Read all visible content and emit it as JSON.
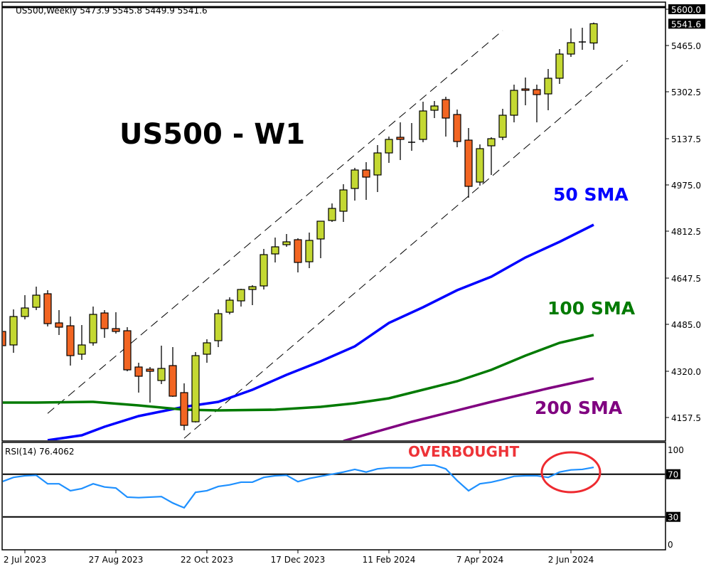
{
  "header": {
    "symbol_info": "US500,Weekly  5473.9 5545.8 5449.9 5541.6"
  },
  "annotations": {
    "title": "US500 - W1",
    "sma50_label": "50 SMA",
    "sma100_label": "100 SMA",
    "sma200_label": "200 SMA",
    "overbought_label": "OVERBOUGHT"
  },
  "colors": {
    "bull": "#c4d832",
    "bear": "#f26522",
    "sma50": "#0000ff",
    "sma100": "#007a00",
    "sma200": "#800080",
    "rsi": "#1e90ff",
    "overbought": "#ee2a30"
  },
  "chart_data": [
    {
      "type": "candlestick",
      "title": "US500 - W1",
      "ylim": [
        4090,
        5625
      ],
      "y_ticks": [
        "5600.0",
        "5465.0",
        "5302.5",
        "5137.5",
        "4975.0",
        "4812.5",
        "4647.5",
        "4485.0",
        "4320.0",
        "4157.5"
      ],
      "x_ticks": [
        "2 Jul 2023",
        "27 Aug 2023",
        "22 Oct 2023",
        "17 Dec 2023",
        "11 Feb 2024",
        "7 Apr 2024",
        "2 Jun 2024"
      ],
      "current_price": "5541.6",
      "horizontal_line": 5600,
      "candles_columns": [
        "date",
        "open",
        "high",
        "low",
        "close"
      ],
      "candles": [
        [
          "18 Jun 2023",
          4460,
          4467.5,
          4395,
          4410
        ],
        [
          "25 Jun 2023",
          4412.5,
          4537.5,
          4385,
          4512.5
        ],
        [
          "2 Jul 2023",
          4512.5,
          4587.5,
          4502.5,
          4542.5
        ],
        [
          "9 Jul 2023",
          4545,
          4617.5,
          4535,
          4587.5
        ],
        [
          "16 Jul 2023",
          4592.5,
          4605,
          4477.5,
          4487.5
        ],
        [
          "23 Jul 2023",
          4490,
          4535,
          4447.5,
          4475
        ],
        [
          "30 Jul 2023",
          4480,
          4512.5,
          4340,
          4375
        ],
        [
          "6 Aug 2023",
          4380,
          4482.5,
          4360,
          4412.5
        ],
        [
          "13 Aug 2023",
          4420,
          4547.5,
          4410,
          4520
        ],
        [
          "20 Aug 2023",
          4525,
          4535,
          4437.5,
          4470
        ],
        [
          "27 Aug 2023",
          4470,
          4527.5,
          4452.5,
          4460
        ],
        [
          "3 Sep 2023",
          4462.5,
          4475,
          4320,
          4325
        ],
        [
          "10 Sep 2023",
          4335,
          4350,
          4245,
          4302.5
        ],
        [
          "17 Sep 2023",
          4327.5,
          4335,
          4210,
          4320
        ],
        [
          "24 Sep 2023",
          4287.5,
          4410,
          4275,
          4330
        ],
        [
          "1 Oct 2023",
          4340,
          4405,
          4230,
          4232.5
        ],
        [
          "8 Oct 2023",
          4245,
          4277.5,
          4112.5,
          4130
        ],
        [
          "15 Oct 2023",
          4142.5,
          4387.5,
          4140,
          4375
        ],
        [
          "22 Oct 2023",
          4380,
          4432.5,
          4350,
          4420
        ],
        [
          "29 Oct 2023",
          4427.5,
          4537.5,
          4405,
          4522.5
        ],
        [
          "5 Nov 2023",
          4527.5,
          4580,
          4520,
          4570
        ],
        [
          "12 Nov 2023",
          4567.5,
          4610,
          4547.5,
          4607.5
        ],
        [
          "19 Nov 2023",
          4607.5,
          4622.5,
          4552.5,
          4617.5
        ],
        [
          "26 Nov 2023",
          4620,
          4750,
          4607.5,
          4730
        ],
        [
          "3 Dec 2023",
          4732.5,
          4790,
          4702.5,
          4757.5
        ],
        [
          "10 Dec 2023",
          4765,
          4802.5,
          4757.5,
          4775
        ],
        [
          "17 Dec 2023",
          4782.5,
          4787.5,
          4667.5,
          4702.5
        ],
        [
          "24 Dec 2023",
          4705,
          4807.5,
          4682.5,
          4780
        ],
        [
          "31 Dec 2023",
          4785,
          4847.5,
          4717.5,
          4847.5
        ],
        [
          "7 Jan 2024",
          4850,
          4910,
          4845,
          4892.5
        ],
        [
          "14 Jan 2024",
          4882.5,
          4977.5,
          4845,
          4957.5
        ],
        [
          "21 Jan 2024",
          4962.5,
          5035,
          4920,
          5027.5
        ],
        [
          "28 Jan 2024",
          5027.5,
          5055,
          4922.5,
          5002.5
        ],
        [
          "4 Feb 2024",
          5010,
          5115,
          4950,
          5087.5
        ],
        [
          "11 Feb 2024",
          5087.5,
          5145,
          5052.5,
          5135
        ],
        [
          "18 Feb 2024",
          5142.5,
          5195,
          5062.5,
          5135
        ],
        [
          "25 Feb 2024",
          5125,
          5192.5,
          5095,
          5125
        ],
        [
          "3 Mar 2024",
          5135,
          5267.5,
          5125,
          5235
        ],
        [
          "10 Mar 2024",
          5237.5,
          5270,
          5210,
          5252.5
        ],
        [
          "17 Mar 2024",
          5275,
          5285,
          5145,
          5210
        ],
        [
          "24 Mar 2024",
          5222.5,
          5240,
          5107.5,
          5127.5
        ],
        [
          "31 Mar 2024",
          5132.5,
          5175,
          4930,
          4970
        ],
        [
          "7 Apr 2024",
          4985,
          5117.5,
          4972.5,
          5102.5
        ],
        [
          "14 Apr 2024",
          5112.5,
          5142.5,
          5010,
          5137.5
        ],
        [
          "21 Apr 2024",
          5142.5,
          5242.5,
          5132.5,
          5220
        ],
        [
          "28 Apr 2024",
          5220,
          5327.5,
          5195,
          5307.5
        ],
        [
          "5 May 2024",
          5312.5,
          5352.5,
          5255,
          5307.5
        ],
        [
          "12 May 2024",
          5310,
          5327.5,
          5195,
          5292.5
        ],
        [
          "19 May 2024",
          5295,
          5382.5,
          5237.5,
          5350
        ],
        [
          "26 May 2024",
          5350,
          5452.5,
          5330,
          5435
        ],
        [
          "2 Jun 2024",
          5435,
          5525,
          5425,
          5475
        ],
        [
          "9 Jun 2024",
          5477.5,
          5527.5,
          5450,
          5477.5
        ],
        [
          "16 Jun 2024",
          5473.9,
          5545.8,
          5449.9,
          5541.6
        ]
      ],
      "series": [
        {
          "name": "50 SMA",
          "points": [
            [
              "16 Jul 2023",
              4077.5
            ],
            [
              "6 Aug 2023",
              4095
            ],
            [
              "20 Aug 2023",
              4125
            ],
            [
              "10 Sep 2023",
              4162.5
            ],
            [
              "8 Oct 2023",
              4195
            ],
            [
              "29 Oct 2023",
              4212.5
            ],
            [
              "19 Nov 2023",
              4255
            ],
            [
              "10 Dec 2023",
              4307.5
            ],
            [
              "31 Dec 2023",
              4355
            ],
            [
              "21 Jan 2024",
              4407.5
            ],
            [
              "11 Feb 2024",
              4490
            ],
            [
              "3 Mar 2024",
              4545
            ],
            [
              "24 Mar 2024",
              4605
            ],
            [
              "14 Apr 2024",
              4652.5
            ],
            [
              "5 May 2024",
              4720
            ],
            [
              "26 May 2024",
              4775
            ],
            [
              "16 Jun 2024",
              4835
            ]
          ]
        },
        {
          "name": "100 SMA",
          "points": [
            [
              "18 Jun 2023",
              4210
            ],
            [
              "9 Jul 2023",
              4210
            ],
            [
              "13 Aug 2023",
              4212.5
            ],
            [
              "10 Sep 2023",
              4200
            ],
            [
              "8 Oct 2023",
              4185
            ],
            [
              "29 Oct 2023",
              4182.5
            ],
            [
              "3 Dec 2023",
              4185
            ],
            [
              "31 Dec 2023",
              4195
            ],
            [
              "21 Jan 2024",
              4207.5
            ],
            [
              "11 Feb 2024",
              4225
            ],
            [
              "3 Mar 2024",
              4255
            ],
            [
              "24 Mar 2024",
              4285
            ],
            [
              "14 Apr 2024",
              4325
            ],
            [
              "5 May 2024",
              4375
            ],
            [
              "26 May 2024",
              4420
            ],
            [
              "16 Jun 2024",
              4447.5
            ]
          ]
        },
        {
          "name": "200 SMA",
          "points": [
            [
              "14 Jan 2024",
              4075
            ],
            [
              "25 Feb 2024",
              4142.5
            ],
            [
              "14 Apr 2024",
              4212.5
            ],
            [
              "19 May 2024",
              4260
            ],
            [
              "16 Jun 2024",
              4295
            ]
          ]
        }
      ],
      "trend_channel": [
        {
          "points": [
            [
              "16 Jul 2023",
              4172
            ],
            [
              "21 Apr 2024",
              5517.5
            ]
          ]
        },
        {
          "points": [
            [
              "8 Oct 2023",
              4084.5
            ],
            [
              "7 Jul 2024",
              5412.5
            ]
          ]
        }
      ]
    },
    {
      "type": "line",
      "title": "RSI(14) 76.4062",
      "ylim": [
        0,
        100
      ],
      "y_ticks": [
        "100",
        "70",
        "30",
        "0"
      ],
      "levels": [
        70,
        30
      ],
      "values": [
        63,
        67,
        68.5,
        69,
        61,
        61,
        54.5,
        56.5,
        61,
        58,
        57,
        48.5,
        48,
        48.5,
        49,
        43,
        38.5,
        53,
        54.5,
        58.5,
        60,
        62.5,
        62.5,
        67,
        68.5,
        69,
        63,
        66,
        68,
        70,
        72,
        74.5,
        72,
        75,
        76,
        76,
        76,
        78.5,
        78.5,
        75,
        64,
        54.5,
        61,
        62.5,
        65,
        68,
        68.5,
        68.5,
        67,
        72,
        74,
        74.5,
        76.4
      ]
    }
  ]
}
